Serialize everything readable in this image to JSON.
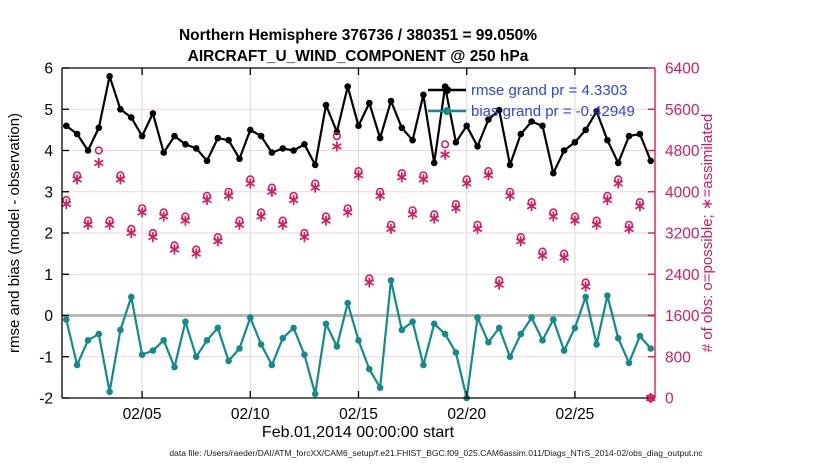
{
  "colors": {
    "rmse": "#000000",
    "bias": "#128b8b",
    "obs": "#d81b60",
    "legend_text": "#2b45f0",
    "grid_horizontal": "#f5d2dd",
    "grid_vertical": "#d9d9d9",
    "zero_line": "#b8b8b8",
    "axis_black": "#000000"
  },
  "footer": {
    "text": "data file: /Users/raeder/DAI/ATM_forcXX/CAM6_setup/f.e21.FHIST_BGC.f09_025.CAM6assim.011/Diags_NTrS_2014-02/obs_diag_output.nc"
  },
  "chart_data": {
    "type": "line",
    "title": {
      "line1": "Northern Hemisphere 376736 / 380351 = 99.050%",
      "line2": "AIRCRAFT_U_WIND_COMPONENT @ 250 hPa"
    },
    "xlabel": "Feb.01,2014 00:00:00 start",
    "ylabel_left": "rmse and bias (model - observation)",
    "ylabel_right": "# of obs: o=possible; ∗=assimilated",
    "legend": {
      "rmse_label": "rmse grand pr = 4.3303",
      "bias_label": "bias grand pr = -0.42949",
      "position": "top-right-inside"
    },
    "x_axis": {
      "range_days": [
        0.3,
        27.7
      ],
      "tick_days": [
        4,
        9,
        14,
        19,
        24
      ],
      "tick_labels": [
        "02/05",
        "02/10",
        "02/15",
        "02/20",
        "02/25"
      ]
    },
    "y_left": {
      "range": [
        -2,
        6
      ],
      "ticks": [
        -2,
        -1,
        0,
        1,
        2,
        3,
        4,
        5,
        6
      ]
    },
    "y_right": {
      "range": [
        0,
        6400
      ],
      "ticks": [
        0,
        800,
        1600,
        2400,
        3200,
        4000,
        4800,
        5600,
        6400
      ]
    },
    "grid": true,
    "zero_reference_line": 0,
    "x_days_since_feb1_00z": [
      0.5,
      1,
      1.5,
      2,
      2.5,
      3,
      3.5,
      4,
      4.5,
      5,
      5.5,
      6,
      6.5,
      7,
      7.5,
      8,
      8.5,
      9,
      9.5,
      10,
      10.5,
      11,
      11.5,
      12,
      12.5,
      13,
      13.5,
      14,
      14.5,
      15,
      15.5,
      16,
      16.5,
      17,
      17.5,
      18,
      18.5,
      19,
      19.5,
      20,
      20.5,
      21,
      21.5,
      22,
      22.5,
      23,
      23.5,
      24,
      24.5,
      25,
      25.5,
      26,
      26.5,
      27,
      27.5
    ],
    "series": [
      {
        "name": "rmse",
        "axis": "left",
        "marker": "filled-circle",
        "line": true,
        "values": [
          4.6,
          4.4,
          4.0,
          4.55,
          5.8,
          5.0,
          4.8,
          4.35,
          4.9,
          3.95,
          4.35,
          4.15,
          4.05,
          3.75,
          4.3,
          4.25,
          3.8,
          4.5,
          4.35,
          3.95,
          4.05,
          4.0,
          4.15,
          3.65,
          5.1,
          4.45,
          5.55,
          4.6,
          5.15,
          4.3,
          5.2,
          4.55,
          4.25,
          5.35,
          3.7,
          5.55,
          4.2,
          4.6,
          4.1,
          4.75,
          4.98,
          3.65,
          4.4,
          4.7,
          4.6,
          3.45,
          4.0,
          4.2,
          4.5,
          4.95,
          4.25,
          3.7,
          4.35,
          4.4,
          3.75
        ]
      },
      {
        "name": "bias",
        "axis": "left",
        "marker": "filled-circle",
        "line": true,
        "values": [
          -0.1,
          -1.2,
          -0.6,
          -0.45,
          -1.85,
          -0.35,
          0.45,
          -0.95,
          -0.85,
          -0.6,
          -1.25,
          -0.15,
          -1.0,
          -0.6,
          -0.3,
          -1.1,
          -0.8,
          -0.05,
          -0.7,
          -1.2,
          -0.55,
          -0.3,
          -0.95,
          -1.9,
          -0.2,
          -0.75,
          0.3,
          -0.6,
          -1.3,
          -1.75,
          0.85,
          -0.35,
          -0.15,
          -1.2,
          -0.2,
          -0.45,
          -0.9,
          -2.0,
          -0.05,
          -0.65,
          -0.3,
          -1.0,
          -0.45,
          -0.05,
          -0.6,
          -0.1,
          -0.85,
          -0.3,
          0.45,
          -0.7,
          0.48,
          -0.55,
          -1.15,
          -0.5,
          -0.8
        ]
      },
      {
        "name": "obs_possible",
        "axis": "right",
        "marker": "open-circle",
        "line": false,
        "values": [
          3840,
          4320,
          3440,
          4800,
          3440,
          4320,
          3280,
          3680,
          3200,
          3600,
          2960,
          3520,
          2880,
          3920,
          3120,
          4000,
          3440,
          4240,
          3600,
          4080,
          3440,
          3920,
          3200,
          4160,
          3520,
          5080,
          3680,
          4400,
          2320,
          4000,
          3360,
          4360,
          3640,
          4320,
          3560,
          4920,
          3760,
          4240,
          3360,
          4400,
          2280,
          4000,
          3120,
          3800,
          2840,
          3600,
          2800,
          3520,
          2240,
          3440,
          3920,
          4240,
          3360,
          3800,
          0
        ]
      },
      {
        "name": "obs_assimilated",
        "axis": "right",
        "marker": "asterisk",
        "line": false,
        "values": [
          3760,
          4240,
          3360,
          4560,
          3360,
          4240,
          3200,
          3600,
          3120,
          3520,
          2880,
          3440,
          2800,
          3840,
          3040,
          3920,
          3360,
          4160,
          3520,
          4000,
          3360,
          3840,
          3120,
          4080,
          3440,
          4880,
          3600,
          4320,
          2240,
          3920,
          3280,
          4280,
          3560,
          4240,
          3480,
          4720,
          3680,
          4160,
          3280,
          4320,
          2200,
          3920,
          3040,
          3720,
          2760,
          3520,
          2720,
          3440,
          2160,
          3360,
          3840,
          4160,
          3280,
          3720,
          0
        ]
      }
    ]
  }
}
